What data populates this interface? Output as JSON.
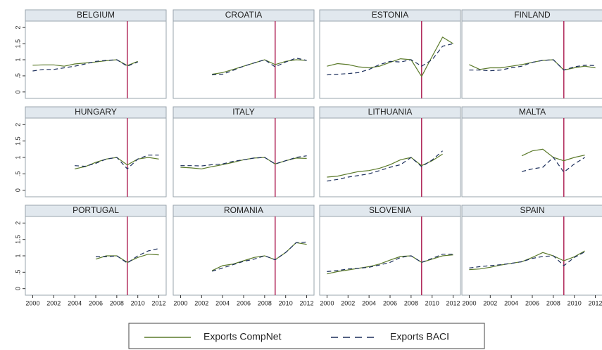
{
  "chart_data": {
    "type": "line",
    "x": [
      2000,
      2001,
      2002,
      2003,
      2004,
      2005,
      2006,
      2007,
      2008,
      2009,
      2010,
      2011,
      2012
    ],
    "xlim": [
      1999.3,
      2012.7
    ],
    "xticks": [
      2000,
      2002,
      2004,
      2006,
      2008,
      2010,
      2012
    ],
    "ylim": [
      -0.2,
      2.2
    ],
    "yticks": [
      0,
      {
        "value": 0.5,
        "label": ".5"
      },
      1,
      {
        "value": 1.5,
        "label": "1.5"
      },
      2
    ],
    "reference_x": 2009,
    "reference_color": "#b0285a",
    "legend": [
      {
        "name": "Exports CompNet",
        "color": "#5b7a2a",
        "dashed": false
      },
      {
        "name": "Exports BACI",
        "color": "#1c2f5c",
        "dashed": true
      }
    ],
    "panels": [
      {
        "title": "BELGIUM",
        "series": [
          {
            "values": [
              0.83,
              0.84,
              0.84,
              0.8,
              0.87,
              0.9,
              0.93,
              0.97,
              1,
              0.82,
              0.95,
              null,
              null
            ]
          },
          {
            "values": [
              0.65,
              0.7,
              0.7,
              0.75,
              0.8,
              0.87,
              0.95,
              0.98,
              1,
              0.8,
              0.93,
              null,
              null
            ]
          }
        ]
      },
      {
        "title": "CROATIA",
        "series": [
          {
            "values": [
              null,
              null,
              null,
              0.55,
              0.6,
              0.7,
              0.8,
              0.9,
              1,
              0.85,
              0.95,
              1,
              0.98
            ]
          },
          {
            "values": [
              null,
              null,
              null,
              0.53,
              0.55,
              0.67,
              0.8,
              0.9,
              1,
              0.78,
              0.93,
              1.05,
              0.98
            ]
          }
        ]
      },
      {
        "title": "ESTONIA",
        "series": [
          {
            "values": [
              0.8,
              0.88,
              0.85,
              0.78,
              0.75,
              0.8,
              0.92,
              1.03,
              1,
              0.48,
              1.1,
              1.7,
              1.5
            ]
          },
          {
            "values": [
              0.53,
              0.55,
              0.57,
              0.6,
              0.7,
              0.85,
              0.95,
              0.93,
              1,
              0.8,
              1,
              1.42,
              1.5
            ]
          }
        ]
      },
      {
        "title": "FINLAND",
        "series": [
          {
            "values": [
              0.85,
              0.7,
              0.75,
              0.75,
              0.8,
              0.85,
              0.92,
              0.98,
              1,
              0.68,
              0.75,
              0.8,
              0.75
            ]
          },
          {
            "values": [
              0.68,
              0.68,
              0.66,
              0.68,
              0.75,
              0.8,
              0.92,
              0.98,
              1,
              0.68,
              0.78,
              0.83,
              0.82
            ]
          }
        ]
      },
      {
        "title": "HUNGARY",
        "series": [
          {
            "values": [
              null,
              null,
              null,
              null,
              0.65,
              0.72,
              0.85,
              0.95,
              1,
              0.77,
              0.95,
              1,
              0.95
            ]
          },
          {
            "values": [
              null,
              null,
              null,
              null,
              0.75,
              0.73,
              0.82,
              0.95,
              1,
              0.65,
              0.95,
              1.07,
              1.07
            ]
          }
        ]
      },
      {
        "title": "ITALY",
        "series": [
          {
            "values": [
              0.7,
              0.68,
              0.65,
              0.72,
              0.78,
              0.85,
              0.93,
              0.98,
              1,
              0.8,
              0.9,
              0.98,
              0.97
            ]
          },
          {
            "values": [
              0.75,
              0.75,
              0.74,
              0.78,
              0.8,
              0.88,
              0.93,
              0.98,
              1,
              0.8,
              0.9,
              1,
              1.05
            ]
          }
        ]
      },
      {
        "title": "LITHUANIA",
        "series": [
          {
            "values": [
              0.4,
              0.43,
              0.5,
              0.57,
              0.6,
              0.67,
              0.78,
              0.93,
              1,
              0.75,
              0.9,
              1.1,
              null
            ]
          },
          {
            "values": [
              0.28,
              0.33,
              0.4,
              0.45,
              0.5,
              0.6,
              0.7,
              0.78,
              1,
              0.72,
              0.92,
              1.2,
              null
            ]
          }
        ]
      },
      {
        "title": "MALTA",
        "series": [
          {
            "values": [
              null,
              null,
              null,
              null,
              null,
              1.05,
              1.2,
              1.25,
              1,
              0.9,
              1,
              1.07,
              null
            ]
          },
          {
            "values": [
              null,
              null,
              null,
              null,
              null,
              0.57,
              0.65,
              0.7,
              1,
              0.55,
              0.8,
              1,
              null
            ]
          }
        ]
      },
      {
        "title": "PORTUGAL",
        "series": [
          {
            "values": [
              null,
              null,
              null,
              null,
              null,
              null,
              0.9,
              1,
              1,
              0.8,
              0.95,
              1.05,
              1.03
            ]
          },
          {
            "values": [
              null,
              null,
              null,
              null,
              null,
              null,
              0.97,
              0.97,
              1,
              0.78,
              1,
              1.15,
              1.22
            ]
          }
        ]
      },
      {
        "title": "ROMANIA",
        "series": [
          {
            "values": [
              null,
              null,
              null,
              0.55,
              0.7,
              0.75,
              0.85,
              0.95,
              1,
              0.88,
              1.1,
              1.4,
              1.35
            ]
          },
          {
            "values": [
              null,
              null,
              null,
              0.53,
              0.63,
              0.73,
              0.83,
              0.9,
              1,
              0.88,
              1.1,
              1.4,
              1.42
            ]
          }
        ]
      },
      {
        "title": "SLOVENIA",
        "series": [
          {
            "values": [
              0.45,
              0.52,
              0.57,
              0.62,
              0.67,
              0.75,
              0.87,
              0.98,
              1,
              0.8,
              0.9,
              1,
              1.03
            ]
          },
          {
            "values": [
              0.52,
              0.55,
              0.6,
              0.62,
              0.65,
              0.72,
              0.8,
              0.95,
              1,
              0.8,
              0.92,
              1.05,
              1.05
            ]
          }
        ]
      },
      {
        "title": "SPAIN",
        "series": [
          {
            "values": [
              0.58,
              0.6,
              0.65,
              0.72,
              0.77,
              0.82,
              0.95,
              1.1,
              1,
              0.85,
              0.97,
              1.15,
              null
            ]
          },
          {
            "values": [
              0.63,
              0.67,
              0.7,
              0.73,
              0.77,
              0.82,
              0.92,
              0.98,
              1,
              0.7,
              0.95,
              1.12,
              null
            ]
          }
        ]
      }
    ]
  }
}
